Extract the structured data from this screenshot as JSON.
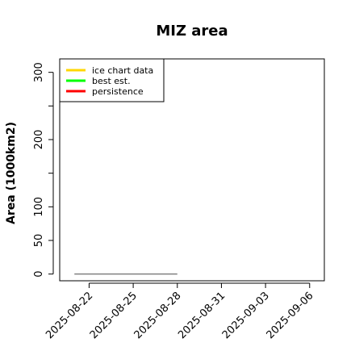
{
  "chart_data": {
    "type": "line",
    "title": "MIZ area",
    "xlabel": "",
    "ylabel": "Area (1000km2)",
    "x_ticks": [
      "2025-08-22",
      "2025-08-25",
      "2025-08-28",
      "2025-08-31",
      "2025-09-03",
      "2025-09-06"
    ],
    "x_range": [
      "2025-08-20",
      "2025-09-07"
    ],
    "y_ticks": [
      0,
      50,
      100,
      200,
      300
    ],
    "y_minor_ticks": [
      150,
      250
    ],
    "ylim": [
      -10,
      320
    ],
    "grid": false,
    "legend_position": "top-left",
    "legend": [
      {
        "label": "ice chart data",
        "color": "#ffd700"
      },
      {
        "label": "best est.",
        "color": "#00ff00"
      },
      {
        "label": "persistence",
        "color": "#ff0000"
      }
    ],
    "series": [
      {
        "color": "#808080",
        "x": [
          "2025-08-21",
          "2025-08-28"
        ],
        "y": [
          0,
          0
        ]
      }
    ]
  }
}
